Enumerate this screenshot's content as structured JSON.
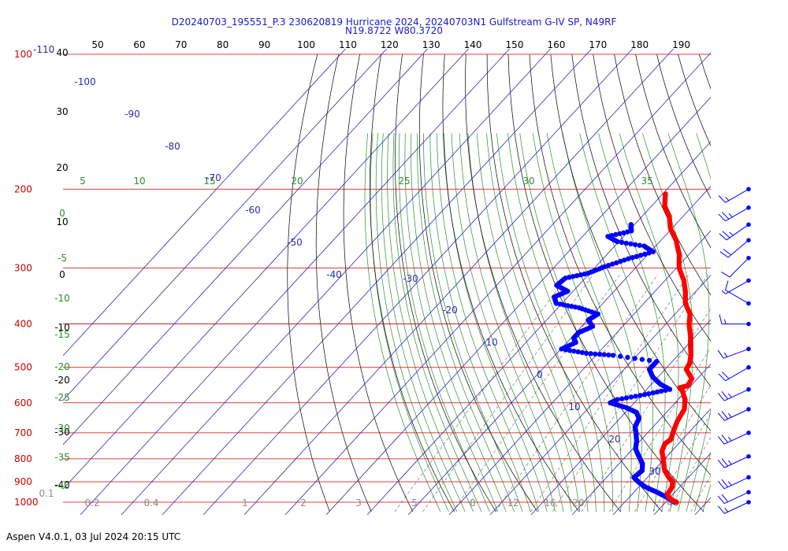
{
  "header": {
    "title_line1": "D20240703_195551_P.3 230620819 Hurricane 2024, 20240703N1 Gulfstream G-IV SP, N49RF",
    "title_line2": "N19.8722 W80.3720"
  },
  "footer": {
    "text": "Aspen V4.0.1, 03 Jul 2024  20:15 UTC"
  },
  "colors": {
    "temperature": "#ff0000",
    "dewpoint": "#0000ff",
    "isobar": "#cc0000",
    "isotherm": "#2a2ab4",
    "dry_adiabat": "#000000",
    "moist_adiabat": "#2e8b2e",
    "mixing_ratio": "#8a8a8a",
    "wind": "#0000ff"
  },
  "chart_data": {
    "type": "skew-t log-p",
    "pressure_axis": {
      "unit": "hPa",
      "scale": "log",
      "range": [
        1000,
        100
      ],
      "tick_labels": [
        "100",
        "200",
        "300",
        "400",
        "500",
        "600",
        "700",
        "800",
        "900",
        "1000"
      ],
      "top_label_suffix": "-110"
    },
    "potential_temperature_labels": [
      "50",
      "60",
      "70",
      "80",
      "90",
      "100",
      "110",
      "120",
      "130",
      "140",
      "150",
      "160",
      "170",
      "180",
      "190"
    ],
    "isotherm_labels": [
      {
        "t": -100,
        "text": "-100"
      },
      {
        "t": -90,
        "text": "-90"
      },
      {
        "t": -80,
        "text": "-80"
      },
      {
        "t": -70,
        "text": "-70"
      },
      {
        "t": -60,
        "text": "-60"
      },
      {
        "t": -50,
        "text": "-50"
      },
      {
        "t": -40,
        "text": "-40"
      },
      {
        "t": -30,
        "text": "-30"
      },
      {
        "t": -20,
        "text": "-20"
      },
      {
        "t": -10,
        "text": "-10"
      },
      {
        "t": 0,
        "text": "0"
      },
      {
        "t": 10,
        "text": "10"
      },
      {
        "t": 20,
        "text": "20"
      },
      {
        "t": 30,
        "text": "30"
      }
    ],
    "height_labels": [
      "40",
      "30",
      "20",
      "10",
      "0",
      "-10",
      "-20",
      "-30",
      "-40"
    ],
    "left_green_labels": [
      "0",
      "-5",
      "-10",
      "-15",
      "-20",
      "-25",
      "-30",
      "-35",
      "-40"
    ],
    "moist_adiabat_top_labels": [
      "5",
      "10",
      "15",
      "20",
      "25",
      "30",
      "35"
    ],
    "mixing_ratio_labels": [
      "0.1",
      "0.2",
      "0.4",
      "1",
      "2",
      "3",
      "5",
      "8",
      "12",
      "16",
      "20",
      "40"
    ],
    "temperature_profile": [
      {
        "p": 1000,
        "t": 25.5
      },
      {
        "p": 990,
        "t": 24.0
      },
      {
        "p": 975,
        "t": 22.5
      },
      {
        "p": 960,
        "t": 21.5
      },
      {
        "p": 925,
        "t": 21.0
      },
      {
        "p": 900,
        "t": 20.0
      },
      {
        "p": 880,
        "t": 18.0
      },
      {
        "p": 850,
        "t": 15.5
      },
      {
        "p": 800,
        "t": 12.5
      },
      {
        "p": 770,
        "t": 10.5
      },
      {
        "p": 740,
        "t": 9.5
      },
      {
        "p": 725,
        "t": 10.0
      },
      {
        "p": 700,
        "t": 9.0
      },
      {
        "p": 660,
        "t": 7.5
      },
      {
        "p": 620,
        "t": 6.5
      },
      {
        "p": 590,
        "t": 4.5
      },
      {
        "p": 565,
        "t": 2.0
      },
      {
        "p": 555,
        "t": 0.5
      },
      {
        "p": 550,
        "t": 2.0
      },
      {
        "p": 530,
        "t": 1.5
      },
      {
        "p": 505,
        "t": -2.0
      },
      {
        "p": 490,
        "t": -2.5
      },
      {
        "p": 470,
        "t": -4.0
      },
      {
        "p": 450,
        "t": -6.0
      },
      {
        "p": 425,
        "t": -8.5
      },
      {
        "p": 400,
        "t": -11.5
      },
      {
        "p": 380,
        "t": -13.5
      },
      {
        "p": 360,
        "t": -17.0
      },
      {
        "p": 340,
        "t": -19.5
      },
      {
        "p": 320,
        "t": -22.5
      },
      {
        "p": 300,
        "t": -26.5
      },
      {
        "p": 280,
        "t": -29.5
      },
      {
        "p": 260,
        "t": -33.5
      },
      {
        "p": 245,
        "t": -37.5
      },
      {
        "p": 230,
        "t": -40.5
      },
      {
        "p": 218,
        "t": -44.0
      },
      {
        "p": 205,
        "t": -46.5
      }
    ],
    "dewpoint_profile": [
      {
        "p": 1000,
        "t": 25.0
      },
      {
        "p": 975,
        "t": 22.0
      },
      {
        "p": 950,
        "t": 18.5
      },
      {
        "p": 925,
        "t": 14.5
      },
      {
        "p": 900,
        "t": 11.5
      },
      {
        "p": 880,
        "t": 9.5
      },
      {
        "p": 850,
        "t": 10.0
      },
      {
        "p": 820,
        "t": 8.5
      },
      {
        "p": 790,
        "t": 6.0
      },
      {
        "p": 760,
        "t": 3.5
      },
      {
        "p": 730,
        "t": 2.0
      },
      {
        "p": 700,
        "t": 0.0
      },
      {
        "p": 680,
        "t": -1.5
      },
      {
        "p": 650,
        "t": -2.5
      },
      {
        "p": 630,
        "t": -4.5
      },
      {
        "p": 615,
        "t": -8.0
      },
      {
        "p": 600,
        "t": -13.0
      },
      {
        "p": 590,
        "t": -12.0
      },
      {
        "p": 575,
        "t": -6.5
      },
      {
        "p": 560,
        "t": -1.5
      },
      {
        "p": 545,
        "t": -5.0
      },
      {
        "p": 525,
        "t": -8.5
      },
      {
        "p": 505,
        "t": -11.0
      },
      {
        "p": 485,
        "t": -11.0
      },
      {
        "p": 470,
        "t": -23.0
      },
      {
        "p": 465,
        "t": -30.0
      },
      {
        "p": 455,
        "t": -37.0
      },
      {
        "p": 440,
        "t": -35.0
      },
      {
        "p": 430,
        "t": -36.5
      },
      {
        "p": 418,
        "t": -36.5
      },
      {
        "p": 405,
        "t": -34.5
      },
      {
        "p": 392,
        "t": -37.0
      },
      {
        "p": 380,
        "t": -36.0
      },
      {
        "p": 368,
        "t": -42.0
      },
      {
        "p": 360,
        "t": -48.5
      },
      {
        "p": 348,
        "t": -50.5
      },
      {
        "p": 338,
        "t": -48.5
      },
      {
        "p": 328,
        "t": -52.5
      },
      {
        "p": 316,
        "t": -52.0
      },
      {
        "p": 308,
        "t": -47.5
      },
      {
        "p": 298,
        "t": -45.0
      },
      {
        "p": 286,
        "t": -41.0
      },
      {
        "p": 276,
        "t": -36.5
      },
      {
        "p": 268,
        "t": -40.0
      },
      {
        "p": 262,
        "t": -47.5
      },
      {
        "p": 255,
        "t": -51.0
      },
      {
        "p": 248,
        "t": -46.5
      },
      {
        "p": 240,
        "t": -48.0
      }
    ],
    "wind_barbs": [
      {
        "p": 200,
        "speed_kt": 15,
        "dir_deg": 240
      },
      {
        "p": 220,
        "speed_kt": 25,
        "dir_deg": 240
      },
      {
        "p": 240,
        "speed_kt": 25,
        "dir_deg": 235
      },
      {
        "p": 260,
        "speed_kt": 20,
        "dir_deg": 230
      },
      {
        "p": 285,
        "speed_kt": 10,
        "dir_deg": 225
      },
      {
        "p": 320,
        "speed_kt": 5,
        "dir_deg": 240
      },
      {
        "p": 360,
        "speed_kt": 10,
        "dir_deg": 300
      },
      {
        "p": 400,
        "speed_kt": 15,
        "dir_deg": 270
      },
      {
        "p": 455,
        "speed_kt": 15,
        "dir_deg": 250
      },
      {
        "p": 500,
        "speed_kt": 20,
        "dir_deg": 240
      },
      {
        "p": 560,
        "speed_kt": 25,
        "dir_deg": 245
      },
      {
        "p": 620,
        "speed_kt": 25,
        "dir_deg": 245
      },
      {
        "p": 700,
        "speed_kt": 25,
        "dir_deg": 245
      },
      {
        "p": 790,
        "speed_kt": 25,
        "dir_deg": 245
      },
      {
        "p": 880,
        "speed_kt": 25,
        "dir_deg": 245
      },
      {
        "p": 950,
        "speed_kt": 20,
        "dir_deg": 245
      },
      {
        "p": 1000,
        "speed_kt": 15,
        "dir_deg": 245
      }
    ]
  }
}
